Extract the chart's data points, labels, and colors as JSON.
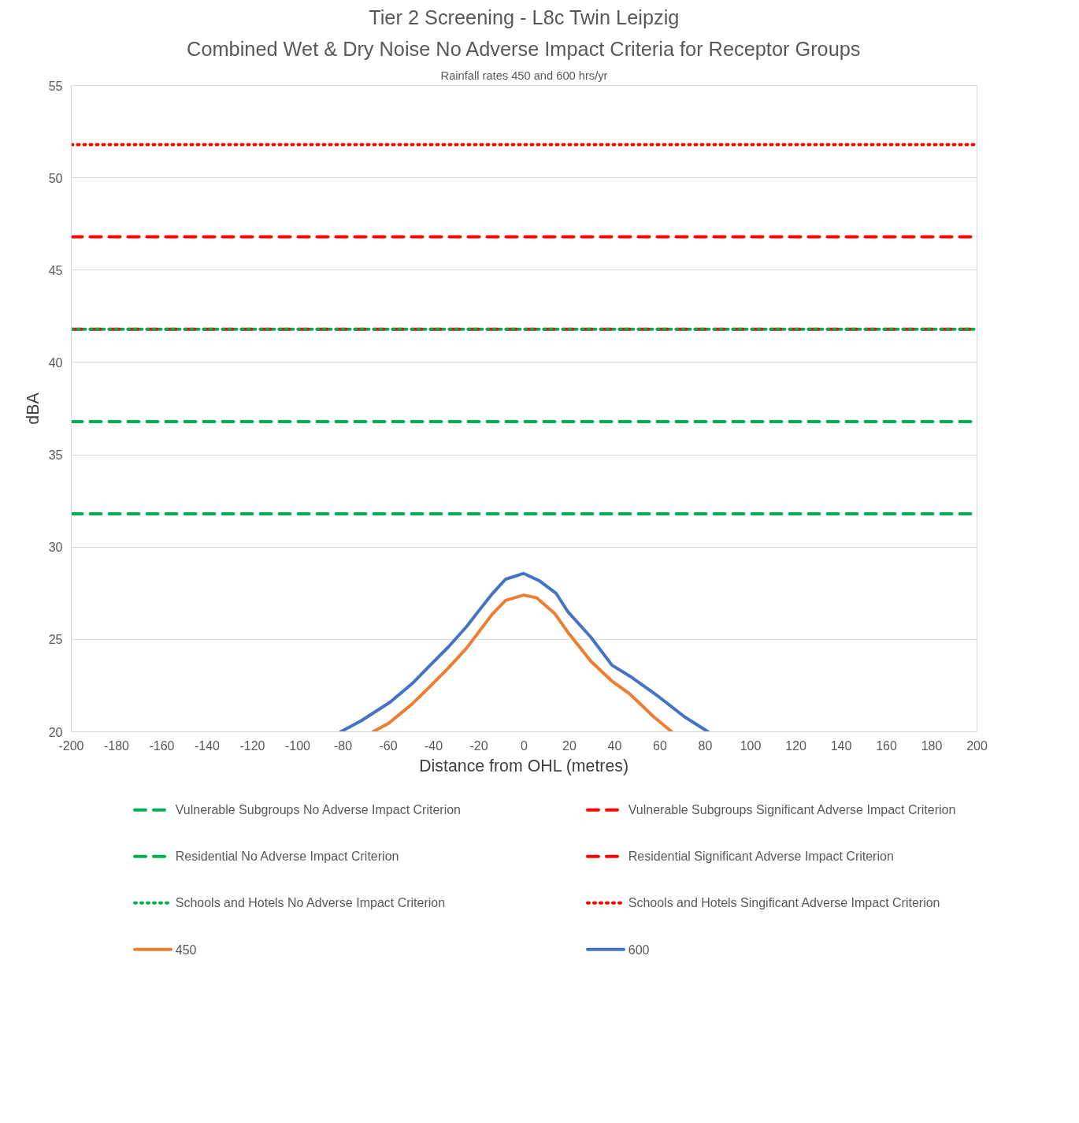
{
  "chart_data": {
    "type": "line",
    "title": "Tier 2 Screening - L8c Twin Leipzig",
    "subtitle": "Combined Wet & Dry Noise No Adverse Impact Criteria for Receptor Groups",
    "annotations": [
      "Rainfall rates 450 and 600 hrs/yr"
    ],
    "xlabel": "Distance from OHL (metres)",
    "ylabel": "dBA",
    "xlim": [
      -200,
      200
    ],
    "ylim": [
      20,
      55
    ],
    "xticks": [
      -200,
      -180,
      -160,
      -140,
      -120,
      -100,
      -80,
      -60,
      -40,
      -20,
      0,
      20,
      40,
      60,
      80,
      100,
      120,
      140,
      160,
      180,
      200
    ],
    "yticks": [
      20,
      25,
      30,
      35,
      40,
      45,
      50,
      55
    ],
    "grid": "y",
    "legend": "bottom",
    "marker": "none",
    "series": [
      {
        "name": "Vulnerable Subgroups No Adverse Impact  Criterion",
        "color": "#00b050",
        "line_style": "dashed",
        "x": [
          -200,
          200
        ],
        "values": [
          31.8,
          31.8
        ]
      },
      {
        "name": "Vulnerable Subgroups Significant Adverse Impact Criterion",
        "color": "#ff0000",
        "line_style": "dashed",
        "x": [
          -200,
          200
        ],
        "values": [
          41.8,
          41.8
        ]
      },
      {
        "name": "Residential No Adverse Impact  Criterion",
        "color": "#00b050",
        "line_style": "dashed",
        "x": [
          -200,
          200
        ],
        "values": [
          36.8,
          36.8
        ]
      },
      {
        "name": "Residential Significant Adverse Impact Criterion",
        "color": "#ff0000",
        "line_style": "dashed",
        "x": [
          -200,
          200
        ],
        "values": [
          46.8,
          46.8
        ]
      },
      {
        "name": "Schools and Hotels No Adverse Impact Criterion",
        "color": "#00b050",
        "line_style": "dotted",
        "x": [
          -200,
          200
        ],
        "values": [
          41.8,
          41.8
        ]
      },
      {
        "name": "Schools and Hotels Singificant Adverse Impact  Criterion",
        "color": "#ff0000",
        "line_style": "dotted",
        "x": [
          -200,
          200
        ],
        "values": [
          51.8,
          51.8
        ]
      },
      {
        "name": "450",
        "color": "#ed7d31",
        "line_style": "solid",
        "x": [
          -66.7,
          -59.8,
          -49.5,
          -41.5,
          -33.4,
          -25.4,
          -19.7,
          -13.9,
          -8.2,
          -0.2,
          5.6,
          13.6,
          19.3,
          29.6,
          38.8,
          46.8,
          57.2,
          65.2
        ],
        "values": [
          20,
          20.46,
          21.5,
          22.46,
          23.46,
          24.53,
          25.46,
          26.39,
          27.11,
          27.4,
          27.25,
          26.39,
          25.39,
          23.8,
          22.74,
          22.03,
          20.81,
          20
        ]
      },
      {
        "name": "600",
        "color": "#4472c4",
        "line_style": "solid",
        "x": [
          -81,
          -71.9,
          -59.2,
          -48.9,
          -41.5,
          -33.4,
          -25.4,
          -19.7,
          -13.9,
          -8.2,
          -0.2,
          6.7,
          14.1,
          19.3,
          29.6,
          38.8,
          46.8,
          59.4,
          70.9,
          81.2
        ],
        "values": [
          20,
          20.6,
          21.6,
          22.67,
          23.6,
          24.6,
          25.7,
          26.6,
          27.5,
          28.26,
          28.57,
          28.18,
          27.5,
          26.5,
          25.1,
          23.6,
          23.0,
          21.9,
          20.8,
          20
        ]
      }
    ]
  }
}
